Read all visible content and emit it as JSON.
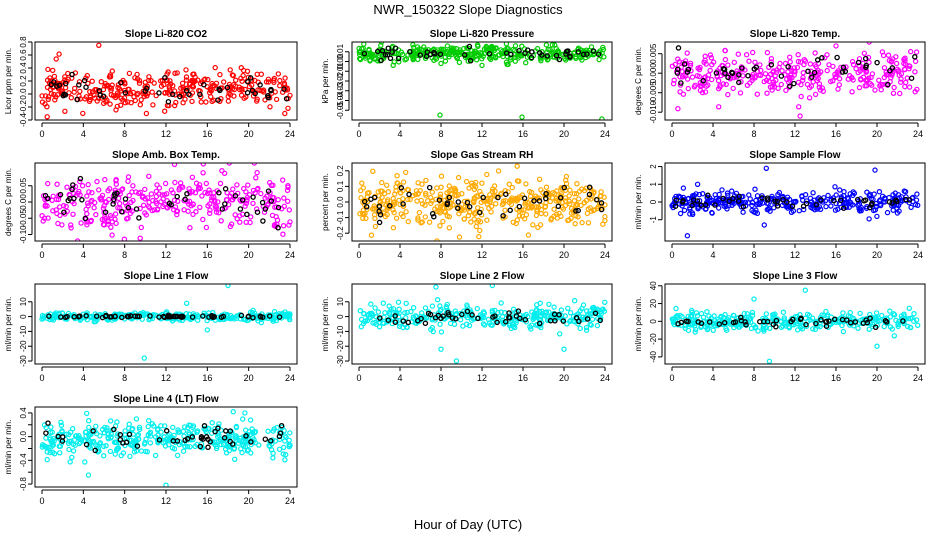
{
  "title": "NWR_150322  Slope Diagnostics",
  "xlabel": "Hour of Day (UTC)",
  "colors": {
    "highlight": "#000000",
    "axis": "#000000"
  },
  "chart_data": [
    {
      "type": "scatter",
      "title": "Slope Li-820 CO2",
      "ylabel": "Licor ppm per min.",
      "color": "#ff0000",
      "xlim": [
        0,
        24
      ],
      "xticks": [
        0,
        4,
        8,
        12,
        16,
        20,
        24
      ],
      "ylim": [
        -0.4,
        0.8
      ],
      "yticks": [
        -0.4,
        -0.2,
        0.0,
        0.2,
        0.4,
        0.6,
        0.8
      ],
      "ytick_labels": [
        "-0.4",
        "-0.2",
        "0.0",
        "0.2",
        "0.4",
        "0.6",
        "0.8"
      ],
      "center": 0.08,
      "spread": 0.15,
      "black_spread": 0.1,
      "n": 330,
      "nb": 45,
      "seed": 11,
      "outliers": [
        [
          5.5,
          0.75
        ],
        [
          0.5,
          -0.35
        ],
        [
          23.5,
          -0.3
        ]
      ]
    },
    {
      "type": "scatter",
      "title": "Slope Li-820 Pressure",
      "ylabel": "kPa per min.",
      "color": "#00cc00",
      "xlim": [
        0,
        24
      ],
      "xticks": [
        0,
        4,
        8,
        12,
        16,
        20,
        24
      ],
      "ylim": [
        -0.06,
        0.02
      ],
      "yticks": [
        -0.05,
        -0.04,
        -0.03,
        -0.02,
        -0.01,
        0.0,
        0.01
      ],
      "ytick_labels": [
        "-0.05",
        "-0.04",
        "-0.03",
        "-0.02",
        "-0.01",
        "0.00",
        "0.01"
      ],
      "center": 0.008,
      "spread": 0.004,
      "black_spread": 0.003,
      "n": 330,
      "nb": 45,
      "seed": 22,
      "outliers": [
        [
          7.9,
          -0.055
        ],
        [
          15.9,
          -0.057
        ],
        [
          23.7,
          -0.059
        ],
        [
          8.0,
          -0.002
        ],
        [
          12.0,
          -0.004
        ]
      ]
    },
    {
      "type": "scatter",
      "title": "Slope Li-820 Temp.",
      "ylabel": "degrees C per min.",
      "color": "#ff00ff",
      "xlim": [
        0,
        24
      ],
      "xticks": [
        0,
        4,
        8,
        12,
        16,
        20,
        24
      ],
      "ylim": [
        -0.012,
        0.008
      ],
      "yticks": [
        -0.01,
        -0.005,
        0.0,
        0.005
      ],
      "ytick_labels": [
        "-0.010",
        "-0.005",
        "0.000",
        "0.005"
      ],
      "center": 0.0,
      "spread": 0.0028,
      "black_spread": 0.0018,
      "n": 330,
      "nb": 45,
      "seed": 33,
      "outliers": [
        [
          12.5,
          -0.011
        ],
        [
          16,
          0.007
        ]
      ]
    },
    {
      "type": "scatter",
      "title": "Slope Amb. Box Temp.",
      "ylabel": "degrees C per min.",
      "color": "#ff00ff",
      "xlim": [
        0,
        24
      ],
      "xticks": [
        0,
        4,
        8,
        12,
        16,
        20,
        24
      ],
      "ylim": [
        -0.12,
        0.12
      ],
      "yticks": [
        -0.1,
        -0.05,
        0.0,
        0.05
      ],
      "ytick_labels": [
        "-0.10",
        "-0.05",
        "0.00",
        "0.05"
      ],
      "center": 0.0,
      "spread": 0.045,
      "black_spread": 0.03,
      "n": 330,
      "nb": 45,
      "seed": 44,
      "outliers": []
    },
    {
      "type": "scatter",
      "title": "Slope Gas Stream RH",
      "ylabel": "percent per min.",
      "color": "#ffaa00",
      "xlim": [
        0,
        24
      ],
      "xticks": [
        0,
        4,
        8,
        12,
        16,
        20,
        24
      ],
      "ylim": [
        -0.25,
        0.25
      ],
      "yticks": [
        -0.2,
        -0.1,
        0.0,
        0.1,
        0.2
      ],
      "ytick_labels": [
        "-0.2",
        "-0.1",
        "0.0",
        "0.1",
        "0.2"
      ],
      "center": 0.0,
      "spread": 0.08,
      "black_spread": 0.06,
      "n": 420,
      "nb": 45,
      "seed": 55,
      "outliers": []
    },
    {
      "type": "scatter",
      "title": "Slope Sample Flow",
      "ylabel": "ml/min per min.",
      "color": "#0000ff",
      "xlim": [
        0,
        24
      ],
      "xticks": [
        0,
        4,
        8,
        12,
        16,
        20,
        24
      ],
      "ylim": [
        -2.2,
        2.2
      ],
      "yticks": [
        -1,
        0,
        1,
        2
      ],
      "ytick_labels": [
        "-1",
        "0",
        "1",
        "2"
      ],
      "center": 0.0,
      "spread": 0.3,
      "black_spread": 0.2,
      "n": 330,
      "nb": 45,
      "seed": 66,
      "outliers": [
        [
          1.5,
          -1.9
        ],
        [
          9.2,
          1.9
        ],
        [
          19.8,
          1.8
        ],
        [
          9.0,
          -1.3
        ],
        [
          2.5,
          1.0
        ]
      ]
    },
    {
      "type": "scatter",
      "title": "Slope Line 1 Flow",
      "ylabel": "ml/min per min.",
      "color": "#00eeee",
      "xlim": [
        0,
        24
      ],
      "xticks": [
        0,
        4,
        8,
        12,
        16,
        20,
        24
      ],
      "ylim": [
        -32,
        22
      ],
      "yticks": [
        -30,
        -20,
        -10,
        0,
        10
      ],
      "ytick_labels": [
        "-30",
        "-20",
        "-10",
        "0",
        "10"
      ],
      "center": 0.0,
      "spread": 1.5,
      "black_spread": 0.3,
      "n": 330,
      "nb": 60,
      "seed": 77,
      "outliers": [
        [
          9.9,
          -28
        ],
        [
          18,
          21
        ],
        [
          14,
          9
        ],
        [
          16,
          -9
        ]
      ]
    },
    {
      "type": "scatter",
      "title": "Slope Line 2 Flow",
      "ylabel": "ml/min per min.",
      "color": "#00eeee",
      "xlim": [
        0,
        24
      ],
      "xticks": [
        0,
        4,
        8,
        12,
        16,
        20,
        24
      ],
      "ylim": [
        -32,
        22
      ],
      "yticks": [
        -30,
        -20,
        -10,
        0,
        10
      ],
      "ytick_labels": [
        "-30",
        "-20",
        "-10",
        "0",
        "10"
      ],
      "center": 0.0,
      "spread": 4,
      "black_spread": 2.5,
      "n": 330,
      "nb": 45,
      "seed": 88,
      "outliers": [
        [
          7.5,
          20
        ],
        [
          8,
          -22
        ],
        [
          13,
          21
        ],
        [
          9.5,
          -30
        ],
        [
          20,
          -22
        ]
      ]
    },
    {
      "type": "scatter",
      "title": "Slope Line 3 Flow",
      "ylabel": "ml/min per min.",
      "color": "#00eeee",
      "xlim": [
        0,
        24
      ],
      "xticks": [
        0,
        4,
        8,
        12,
        16,
        20,
        24
      ],
      "ylim": [
        -48,
        42
      ],
      "yticks": [
        -40,
        -20,
        0,
        20,
        40
      ],
      "ytick_labels": [
        "-40",
        "-20",
        "0",
        "20",
        "40"
      ],
      "center": 0.0,
      "spread": 5,
      "black_spread": 3,
      "n": 330,
      "nb": 45,
      "seed": 99,
      "outliers": [
        [
          13,
          35
        ],
        [
          9.5,
          -45
        ],
        [
          20,
          -28
        ],
        [
          8,
          25
        ]
      ]
    },
    {
      "type": "scatter",
      "title": "Slope Line 4 (LT) Flow",
      "ylabel": "ml/min per min.",
      "color": "#00eeee",
      "xlim": [
        0,
        24
      ],
      "xticks": [
        0,
        4,
        8,
        12,
        16,
        20,
        24
      ],
      "ylim": [
        -0.85,
        0.5
      ],
      "yticks": [
        -0.8,
        -0.6,
        -0.4,
        -0.2,
        0.0,
        0.2,
        0.4
      ],
      "ytick_labels": [
        "-0.8",
        null,
        "-0.4",
        null,
        "0.0",
        null,
        "0.4"
      ],
      "center": -0.05,
      "spread": 0.14,
      "black_spread": 0.1,
      "n": 380,
      "nb": 45,
      "seed": 111,
      "outliers": [
        [
          12,
          -0.82
        ],
        [
          4.5,
          -0.65
        ],
        [
          18.5,
          0.42
        ]
      ]
    }
  ]
}
